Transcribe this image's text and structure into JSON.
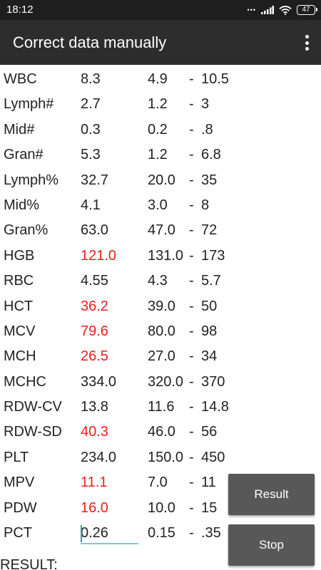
{
  "status_bar": {
    "time": "18:12",
    "battery": "47",
    "icons": [
      "dots-icon",
      "signal-icon",
      "wifi-icon",
      "battery-icon"
    ]
  },
  "app_bar": {
    "title": "Correct data manually",
    "menu_icon": "overflow-menu-icon"
  },
  "colors": {
    "status_bar_bg": "#1e1e1e",
    "app_bar_bg": "#2d2d2d",
    "abnormal_value": "#e8201a",
    "button_bg": "#585858",
    "input_underline": "#80cbc4"
  },
  "rows": [
    {
      "name": "WBC",
      "value": "8.3",
      "min": "4.9",
      "max": "10.5",
      "abnormal": false
    },
    {
      "name": "Lymph#",
      "value": "2.7",
      "min": "1.2",
      "max": "3",
      "abnormal": false
    },
    {
      "name": "Mid#",
      "value": "0.3",
      "min": "0.2",
      "max": ".8",
      "abnormal": false
    },
    {
      "name": "Gran#",
      "value": "5.3",
      "min": "1.2",
      "max": "6.8",
      "abnormal": false
    },
    {
      "name": "Lymph%",
      "value": "32.7",
      "min": "20.0",
      "max": "35",
      "abnormal": false
    },
    {
      "name": "Mid%",
      "value": "4.1",
      "min": "3.0",
      "max": "8",
      "abnormal": false
    },
    {
      "name": "Gran%",
      "value": "63.0",
      "min": "47.0",
      "max": "72",
      "abnormal": false
    },
    {
      "name": "HGB",
      "value": "121.0",
      "min": "131.0",
      "max": "173",
      "abnormal": true
    },
    {
      "name": "RBC",
      "value": "4.55",
      "min": "4.3",
      "max": "5.7",
      "abnormal": false
    },
    {
      "name": "HCT",
      "value": "36.2",
      "min": "39.0",
      "max": "50",
      "abnormal": true
    },
    {
      "name": "MCV",
      "value": "79.6",
      "min": "80.0",
      "max": "98",
      "abnormal": true
    },
    {
      "name": "MCH",
      "value": "26.5",
      "min": "27.0",
      "max": "34",
      "abnormal": true
    },
    {
      "name": "MCHC",
      "value": "334.0",
      "min": "320.0",
      "max": "370",
      "abnormal": false
    },
    {
      "name": "RDW-CV",
      "value": "13.8",
      "min": "11.6",
      "max": "14.8",
      "abnormal": false
    },
    {
      "name": "RDW-SD",
      "value": "40.3",
      "min": "46.0",
      "max": "56",
      "abnormal": true
    },
    {
      "name": "PLT",
      "value": "234.0",
      "min": "150.0",
      "max": "450",
      "abnormal": false
    },
    {
      "name": "MPV",
      "value": "11.1",
      "min": "7.0",
      "max": "11",
      "abnormal": true
    },
    {
      "name": "PDW",
      "value": "16.0",
      "min": "10.0",
      "max": "15",
      "abnormal": true
    },
    {
      "name": "PCT",
      "value": "0.26",
      "min": "0.15",
      "max": ".35",
      "abnormal": false,
      "editing": true
    }
  ],
  "range_separator": "-",
  "buttons": {
    "result": "Result",
    "stop": "Stop"
  },
  "result_label": "RESULT:"
}
